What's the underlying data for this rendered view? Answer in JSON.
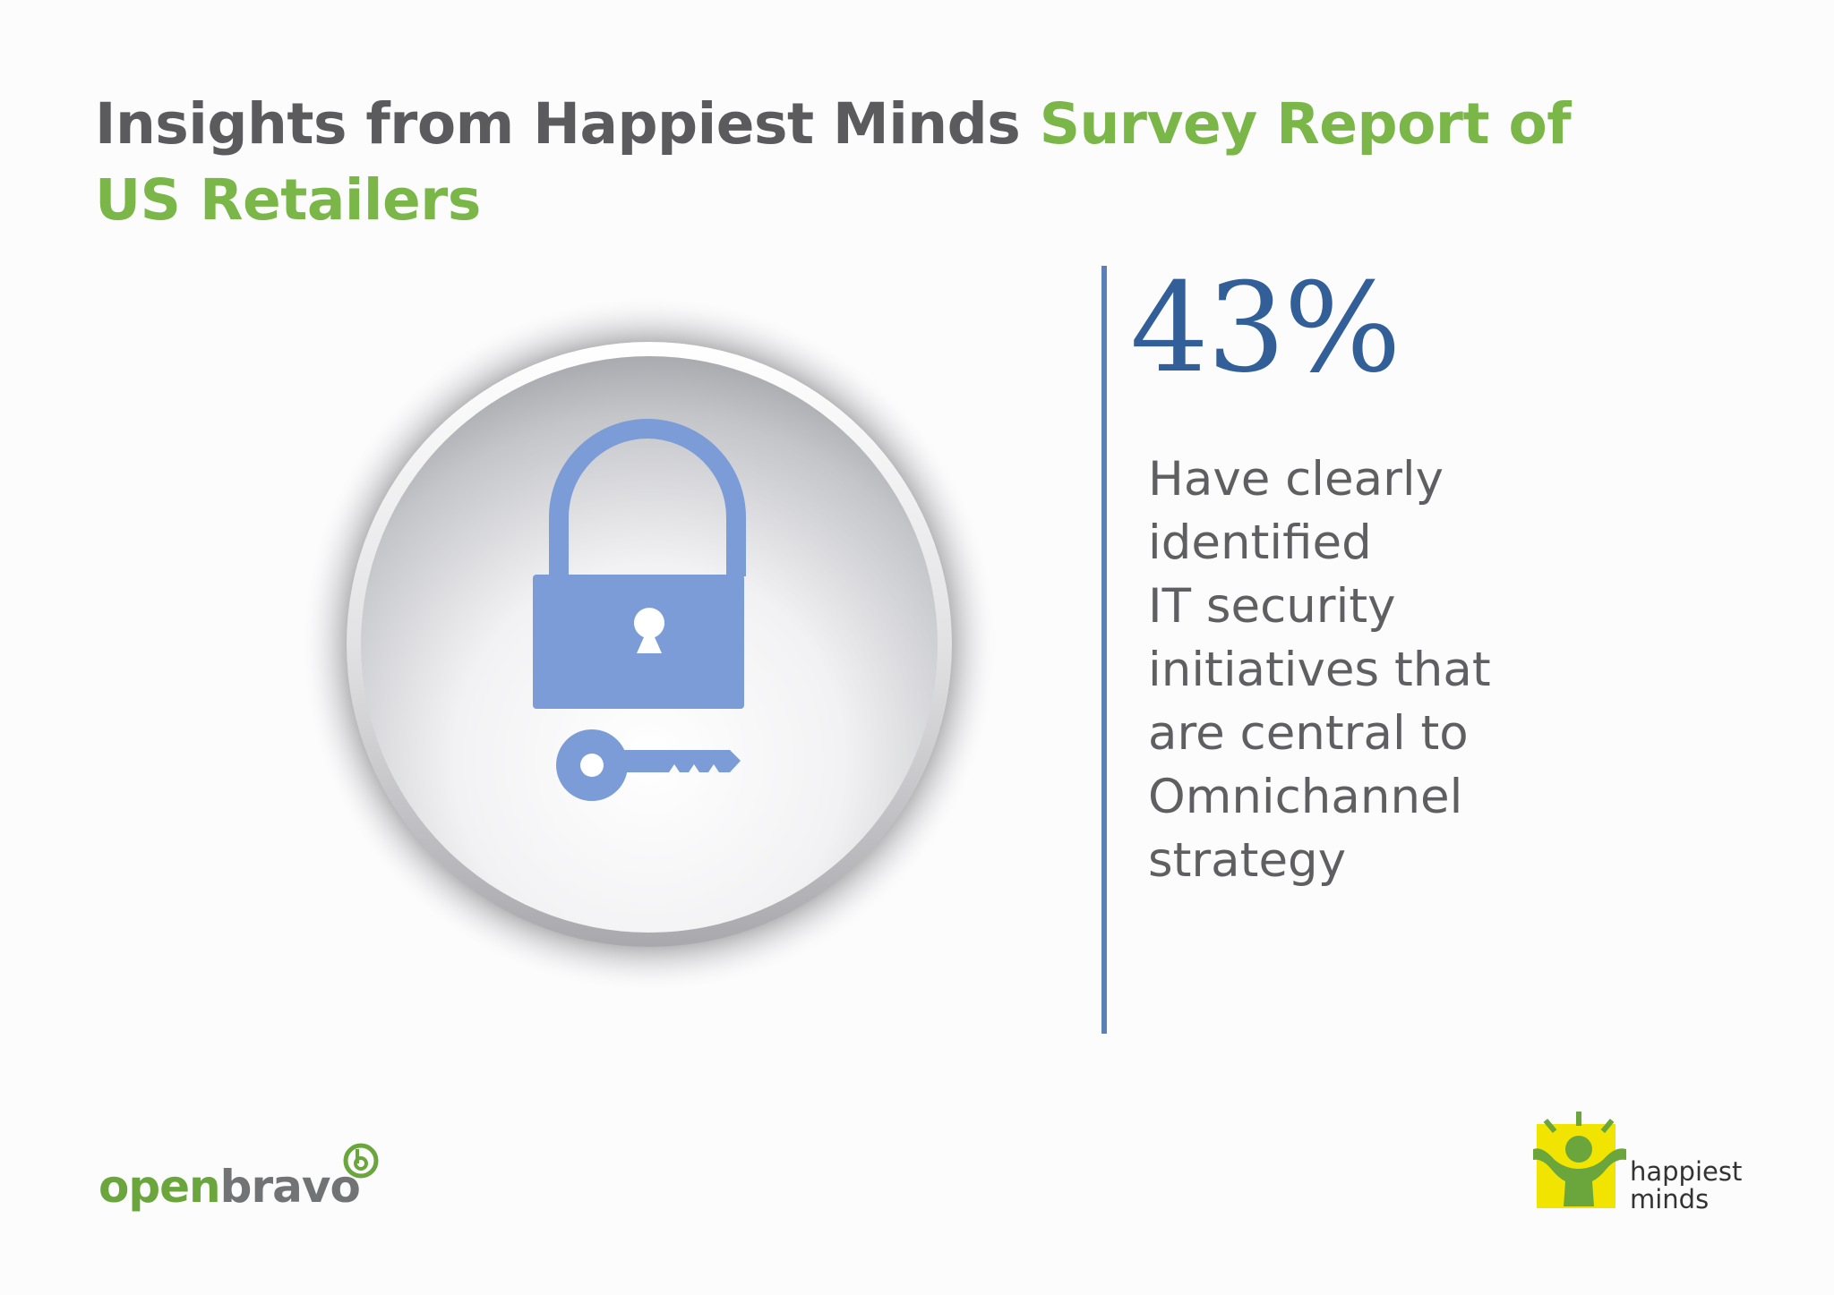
{
  "title": {
    "part1": "Insights from Happiest Minds ",
    "part2": "Survey Report of US Retailers"
  },
  "stat": {
    "value": "43%",
    "lines": [
      "Have clearly",
      "identified",
      "IT security",
      "initiatives that",
      "are central to",
      "Omnichannel",
      "strategy"
    ]
  },
  "illustration": {
    "icon": "padlock-with-key-icon",
    "icon_color": "#7b9cd6"
  },
  "logos": {
    "openbravo": {
      "open": "open",
      "bravo": "bravo",
      "registered": "®"
    },
    "happiest_minds": {
      "line1": "happiest",
      "line2": "minds"
    }
  },
  "colors": {
    "title_dark": "#5b5b5d",
    "title_green": "#7ab648",
    "stat_blue": "#335f99",
    "divider": "#5b80b7",
    "body_text": "#5f5f61"
  }
}
